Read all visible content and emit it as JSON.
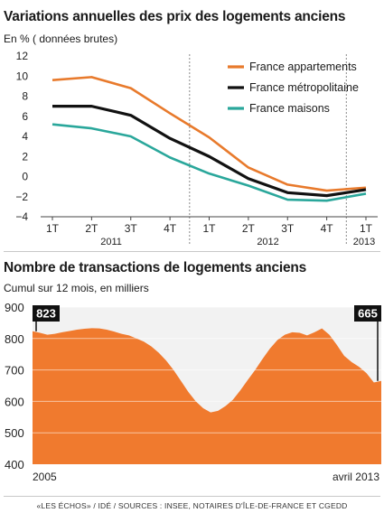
{
  "chart_data": [
    {
      "type": "line",
      "title": "Variations annuelles des prix des logements anciens",
      "subtitle": "En % ( données brutes)",
      "ylim": [
        -4,
        12
      ],
      "yticks": [
        "12",
        "10",
        "8",
        "6",
        "4",
        "2",
        "0",
        "−2",
        "−4"
      ],
      "yticks_values": [
        12,
        10,
        8,
        6,
        4,
        2,
        0,
        -2,
        -4
      ],
      "categories": [
        "1T",
        "2T",
        "3T",
        "4T",
        "1T",
        "2T",
        "3T",
        "4T",
        "1T"
      ],
      "year_labels": [
        "2011",
        "2012",
        "2013"
      ],
      "grid": false,
      "legend": "top-right",
      "series": [
        {
          "name": "France appartements",
          "color": "#e87a2c",
          "values": [
            9.6,
            9.9,
            8.8,
            6.3,
            3.9,
            0.9,
            -0.8,
            -1.4,
            -1.1
          ]
        },
        {
          "name": "France métropolitaine",
          "color": "#111111",
          "values": [
            7.0,
            7.0,
            6.1,
            3.8,
            2.0,
            -0.2,
            -1.6,
            -1.9,
            -1.3
          ]
        },
        {
          "name": "France maisons",
          "color": "#2aa79b",
          "values": [
            5.2,
            4.8,
            4.0,
            1.9,
            0.3,
            -0.9,
            -2.3,
            -2.4,
            -1.7
          ]
        }
      ]
    },
    {
      "type": "area",
      "title": "Nombre de transactions de logements anciens",
      "subtitle": "Cumul sur 12 mois, en milliers",
      "color": "#f07a2e",
      "ylim": [
        400,
        900
      ],
      "yticks": [
        "900",
        "800",
        "700",
        "600",
        "500",
        "400"
      ],
      "yticks_values": [
        900,
        800,
        700,
        600,
        500,
        400
      ],
      "x_labels": [
        "2005",
        "avril 2013"
      ],
      "start_value": "823",
      "end_value": "665",
      "series": [
        {
          "name": "",
          "values": [
            823,
            818,
            812,
            815,
            820,
            824,
            828,
            831,
            833,
            832,
            828,
            822,
            815,
            810,
            800,
            790,
            775,
            755,
            730,
            700,
            665,
            630,
            600,
            578,
            565,
            570,
            585,
            605,
            635,
            668,
            700,
            735,
            768,
            795,
            812,
            820,
            818,
            810,
            820,
            832,
            812,
            780,
            745,
            725,
            710,
            690,
            660,
            665
          ]
        }
      ]
    }
  ],
  "source": "«LES ÉCHOS» / IDÉ / SOURCES : INSEE, NOTAIRES D'ÎLE-DE-FRANCE ET CGEDD"
}
